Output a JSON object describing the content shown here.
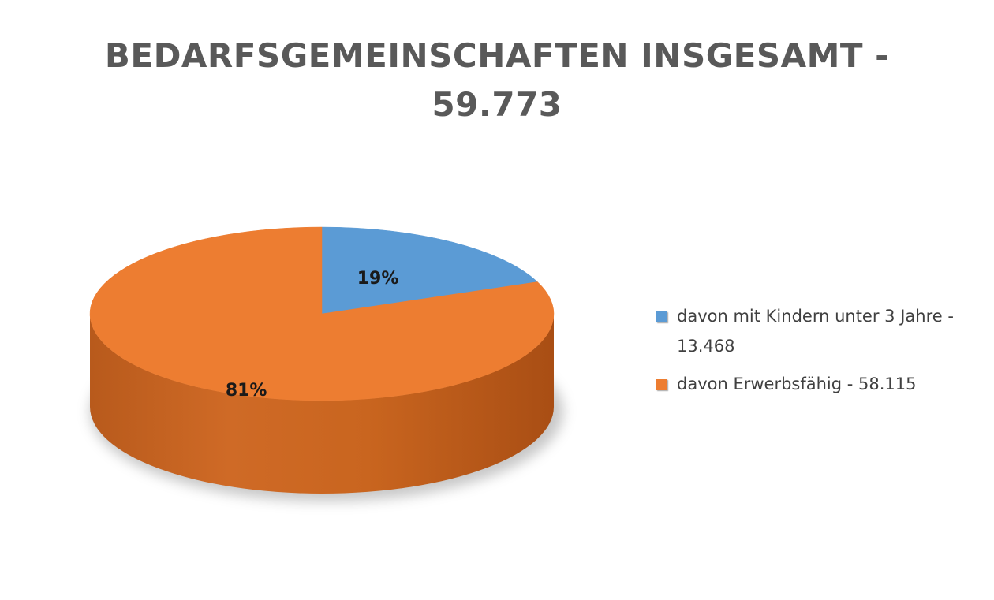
{
  "chart_data": {
    "type": "pie",
    "title_line1": "BEDARFSGEMEINSCHAFTEN INSGESAMT -",
    "title_line2": "59.773",
    "series": [
      {
        "name": "davon mit Kindern unter 3 Jahre - 13.468",
        "value": 19,
        "label": "19%",
        "color": "#5b9bd5"
      },
      {
        "name": "davon Erwerbsfähig - 58.115",
        "value": 81,
        "label": "81%",
        "color": "#ed7d31"
      }
    ],
    "legend_position": "right",
    "style": "3d"
  }
}
